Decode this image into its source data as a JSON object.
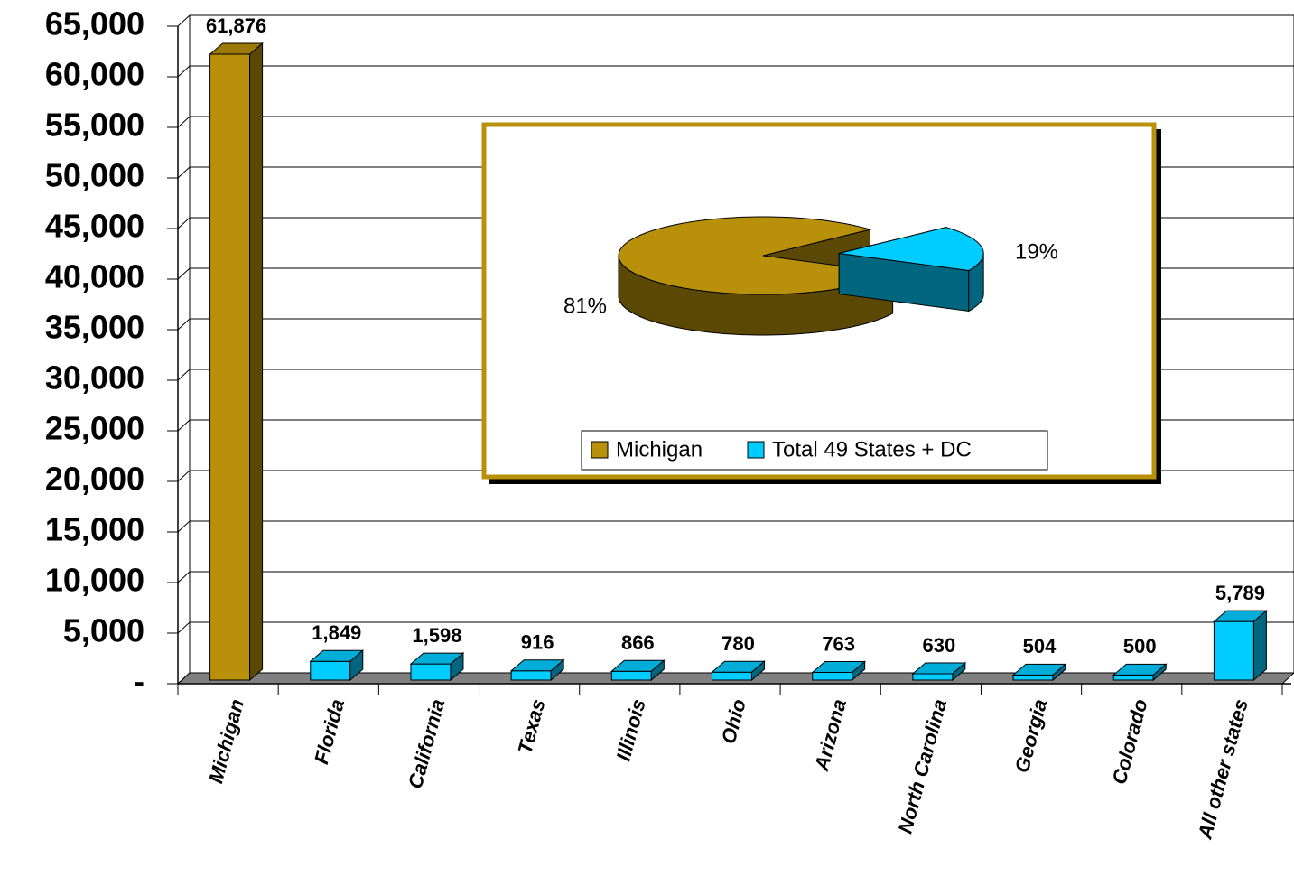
{
  "chart_data": [
    {
      "type": "bar",
      "categories": [
        "Michigan",
        "Florida",
        "California",
        "Texas",
        "Illinois",
        "Ohio",
        "Arizona",
        "North Carolina",
        "Georgia",
        "Colorado",
        "All other states"
      ],
      "values": [
        61876,
        1849,
        1598,
        916,
        866,
        780,
        763,
        630,
        504,
        500,
        5789
      ],
      "value_labels": [
        "61,876",
        "1,849",
        "1,598",
        "916",
        "866",
        "780",
        "763",
        "630",
        "504",
        "500",
        "5,789"
      ],
      "colors": [
        "#b8900a",
        "#00ccff",
        "#00ccff",
        "#00ccff",
        "#00ccff",
        "#00ccff",
        "#00ccff",
        "#00ccff",
        "#00ccff",
        "#00ccff",
        "#00ccff"
      ],
      "ylim": [
        0,
        65000
      ],
      "yticks": [
        {
          "value": 0,
          "label": "-"
        },
        {
          "value": 5000,
          "label": "5,000"
        },
        {
          "value": 10000,
          "label": "10,000"
        },
        {
          "value": 15000,
          "label": "15,000"
        },
        {
          "value": 20000,
          "label": "20,000"
        },
        {
          "value": 25000,
          "label": "25,000"
        },
        {
          "value": 30000,
          "label": "30,000"
        },
        {
          "value": 35000,
          "label": "35,000"
        },
        {
          "value": 40000,
          "label": "40,000"
        },
        {
          "value": 45000,
          "label": "45,000"
        },
        {
          "value": 50000,
          "label": "50,000"
        },
        {
          "value": 55000,
          "label": "55,000"
        },
        {
          "value": 60000,
          "label": "60,000"
        },
        {
          "value": 65000,
          "label": "65,000"
        }
      ],
      "grid": true
    },
    {
      "type": "pie",
      "categories": [
        "Michigan",
        "Total 49 States + DC"
      ],
      "values": [
        81,
        19
      ],
      "value_labels": [
        "81%",
        "19%"
      ],
      "colors": [
        "#b8900a",
        "#00ccff"
      ],
      "legend": "bottom"
    }
  ]
}
